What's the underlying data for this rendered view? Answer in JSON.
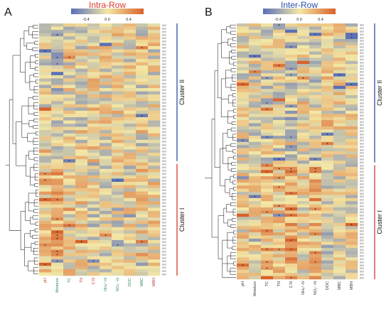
{
  "chart_data": [
    {
      "type": "heatmap",
      "panel": "A",
      "title": "Intra-Row",
      "title_color": "#d63a2a",
      "colorbar_ticks": [
        "-0.4",
        "0.0",
        "0.4"
      ],
      "columns": [
        "pH",
        "Moisture",
        "TC",
        "TN",
        "C:N",
        "NH₄⁺-N",
        "NO₃⁻-N",
        "DOC",
        "MBC",
        "MBN"
      ],
      "column_colors": [
        "#c0392b",
        "#2e8b57",
        "#2e8b57",
        "#c0392b",
        "#c0392b",
        "#2e8b57",
        "#2e8b57",
        "#2e8b57",
        "#2e8b57",
        "#c0392b"
      ],
      "row_count": 78,
      "clusters": [
        {
          "label": "Cluster II",
          "color": "#2b4fa8"
        },
        {
          "label": "Cluster I",
          "color": "#d63a2a"
        }
      ],
      "row_label_prefix": "ASV"
    },
    {
      "type": "heatmap",
      "panel": "B",
      "title": "Inter-Row",
      "title_color": "#2b4fa8",
      "colorbar_ticks": [
        "-0.4",
        "0.0",
        "0.4"
      ],
      "columns": [
        "pH",
        "Moisture",
        "TC",
        "TN",
        "C:N",
        "NH₄⁺-N",
        "NO₃⁻-N",
        "DOC",
        "MBC",
        "MBN"
      ],
      "column_colors": [
        "#333333",
        "#333333",
        "#333333",
        "#333333",
        "#333333",
        "#333333",
        "#333333",
        "#333333",
        "#333333",
        "#333333"
      ],
      "row_count": 82,
      "clusters": [
        {
          "label": "Cluster II",
          "color": "#2b4fa8"
        },
        {
          "label": "Cluster I",
          "color": "#d63a2a"
        }
      ],
      "row_label_prefix": "ASV"
    }
  ],
  "colors": {
    "negative": "#5a6fb8",
    "neutral": "#f3e7a6",
    "positive": "#d9622b"
  }
}
